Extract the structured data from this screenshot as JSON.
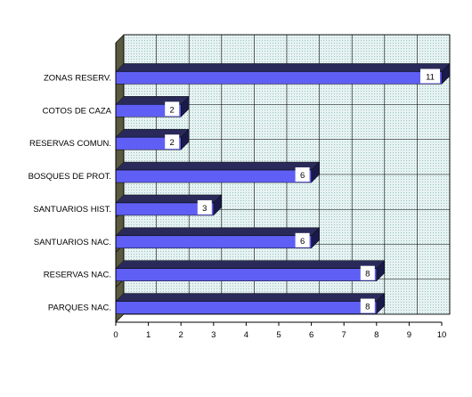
{
  "chart_data": {
    "type": "bar",
    "orientation": "horizontal",
    "style": "3d",
    "categories": [
      "ZONAS RESERV.",
      "COTOS DE CAZA",
      "RESERVAS COMUN.",
      "BOSQUES DE PROT.",
      "SANTUARIOS HIST.",
      "SANTUARIOS NAC.",
      "RESERVAS NAC.",
      "PARQUES NAC."
    ],
    "values": [
      11,
      2,
      2,
      6,
      3,
      6,
      8,
      8
    ],
    "data_labels": [
      "11",
      "2",
      "2",
      "6",
      "3",
      "6",
      "8",
      "8"
    ],
    "xlim": [
      0,
      10
    ],
    "xticks": [
      "0",
      "1",
      "2",
      "3",
      "4",
      "5",
      "6",
      "7",
      "8",
      "9",
      "10"
    ],
    "grid": true,
    "legend": "none",
    "title": "",
    "xlabel": "",
    "ylabel": "",
    "colors": {
      "bar_front": "#5f5ff5",
      "bar_top": "#2a2a5a",
      "bar_side": "#1a1a4a",
      "back_wall": "#d8ecec",
      "floor_wall": "#5a5a40",
      "grid": "#000000",
      "label_box": "#ffffff"
    }
  }
}
